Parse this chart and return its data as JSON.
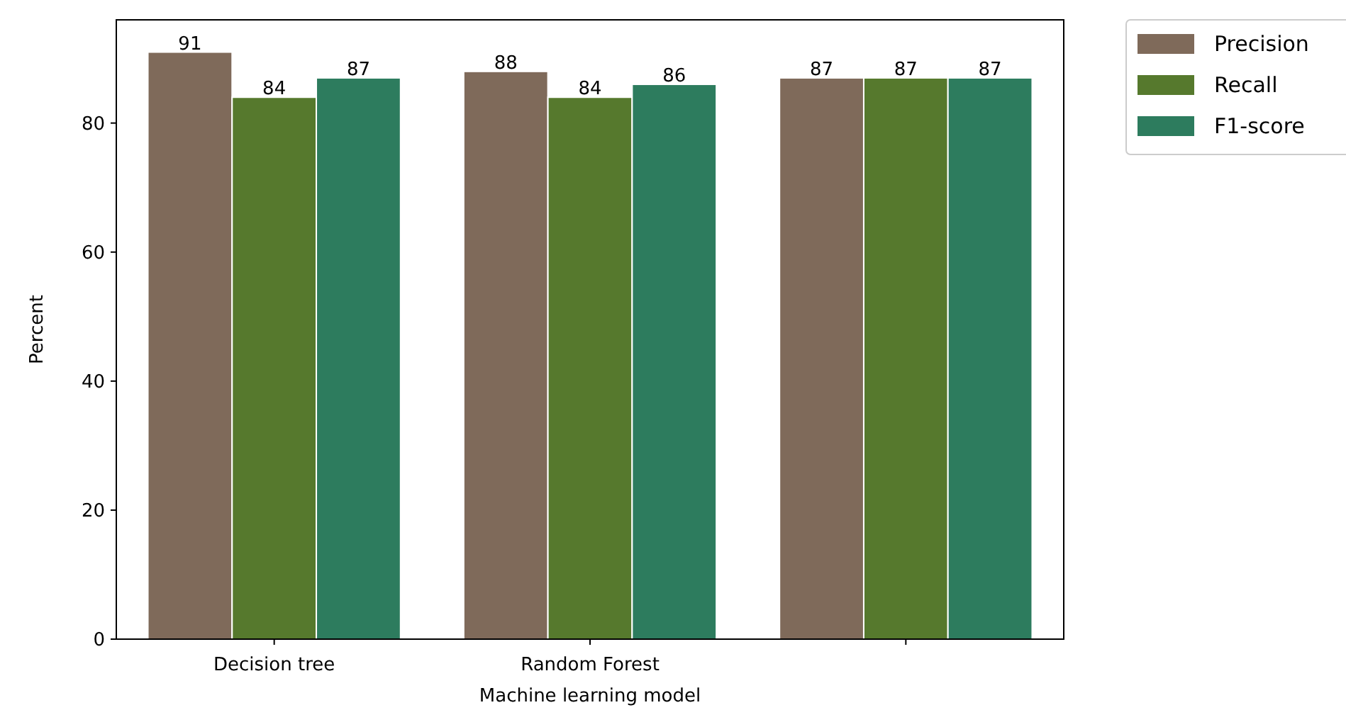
{
  "chart_data": {
    "type": "bar",
    "xlabel": "Machine learning model",
    "ylabel": "Percent",
    "categories": [
      "Decision tree",
      "Random Forest",
      null
    ],
    "series": [
      {
        "name": "Precision",
        "color": "#7f6a5a",
        "values": [
          91,
          88,
          87
        ]
      },
      {
        "name": "Recall",
        "color": "#56792d",
        "values": [
          84,
          84,
          87
        ]
      },
      {
        "name": "F1-score",
        "color": "#2d7c5e",
        "values": [
          87,
          86,
          87
        ]
      }
    ],
    "ylim": [
      0,
      96
    ],
    "yticks": [
      0,
      20,
      40,
      60,
      80
    ],
    "data_labels": true,
    "legend": "top right",
    "grid": false
  }
}
